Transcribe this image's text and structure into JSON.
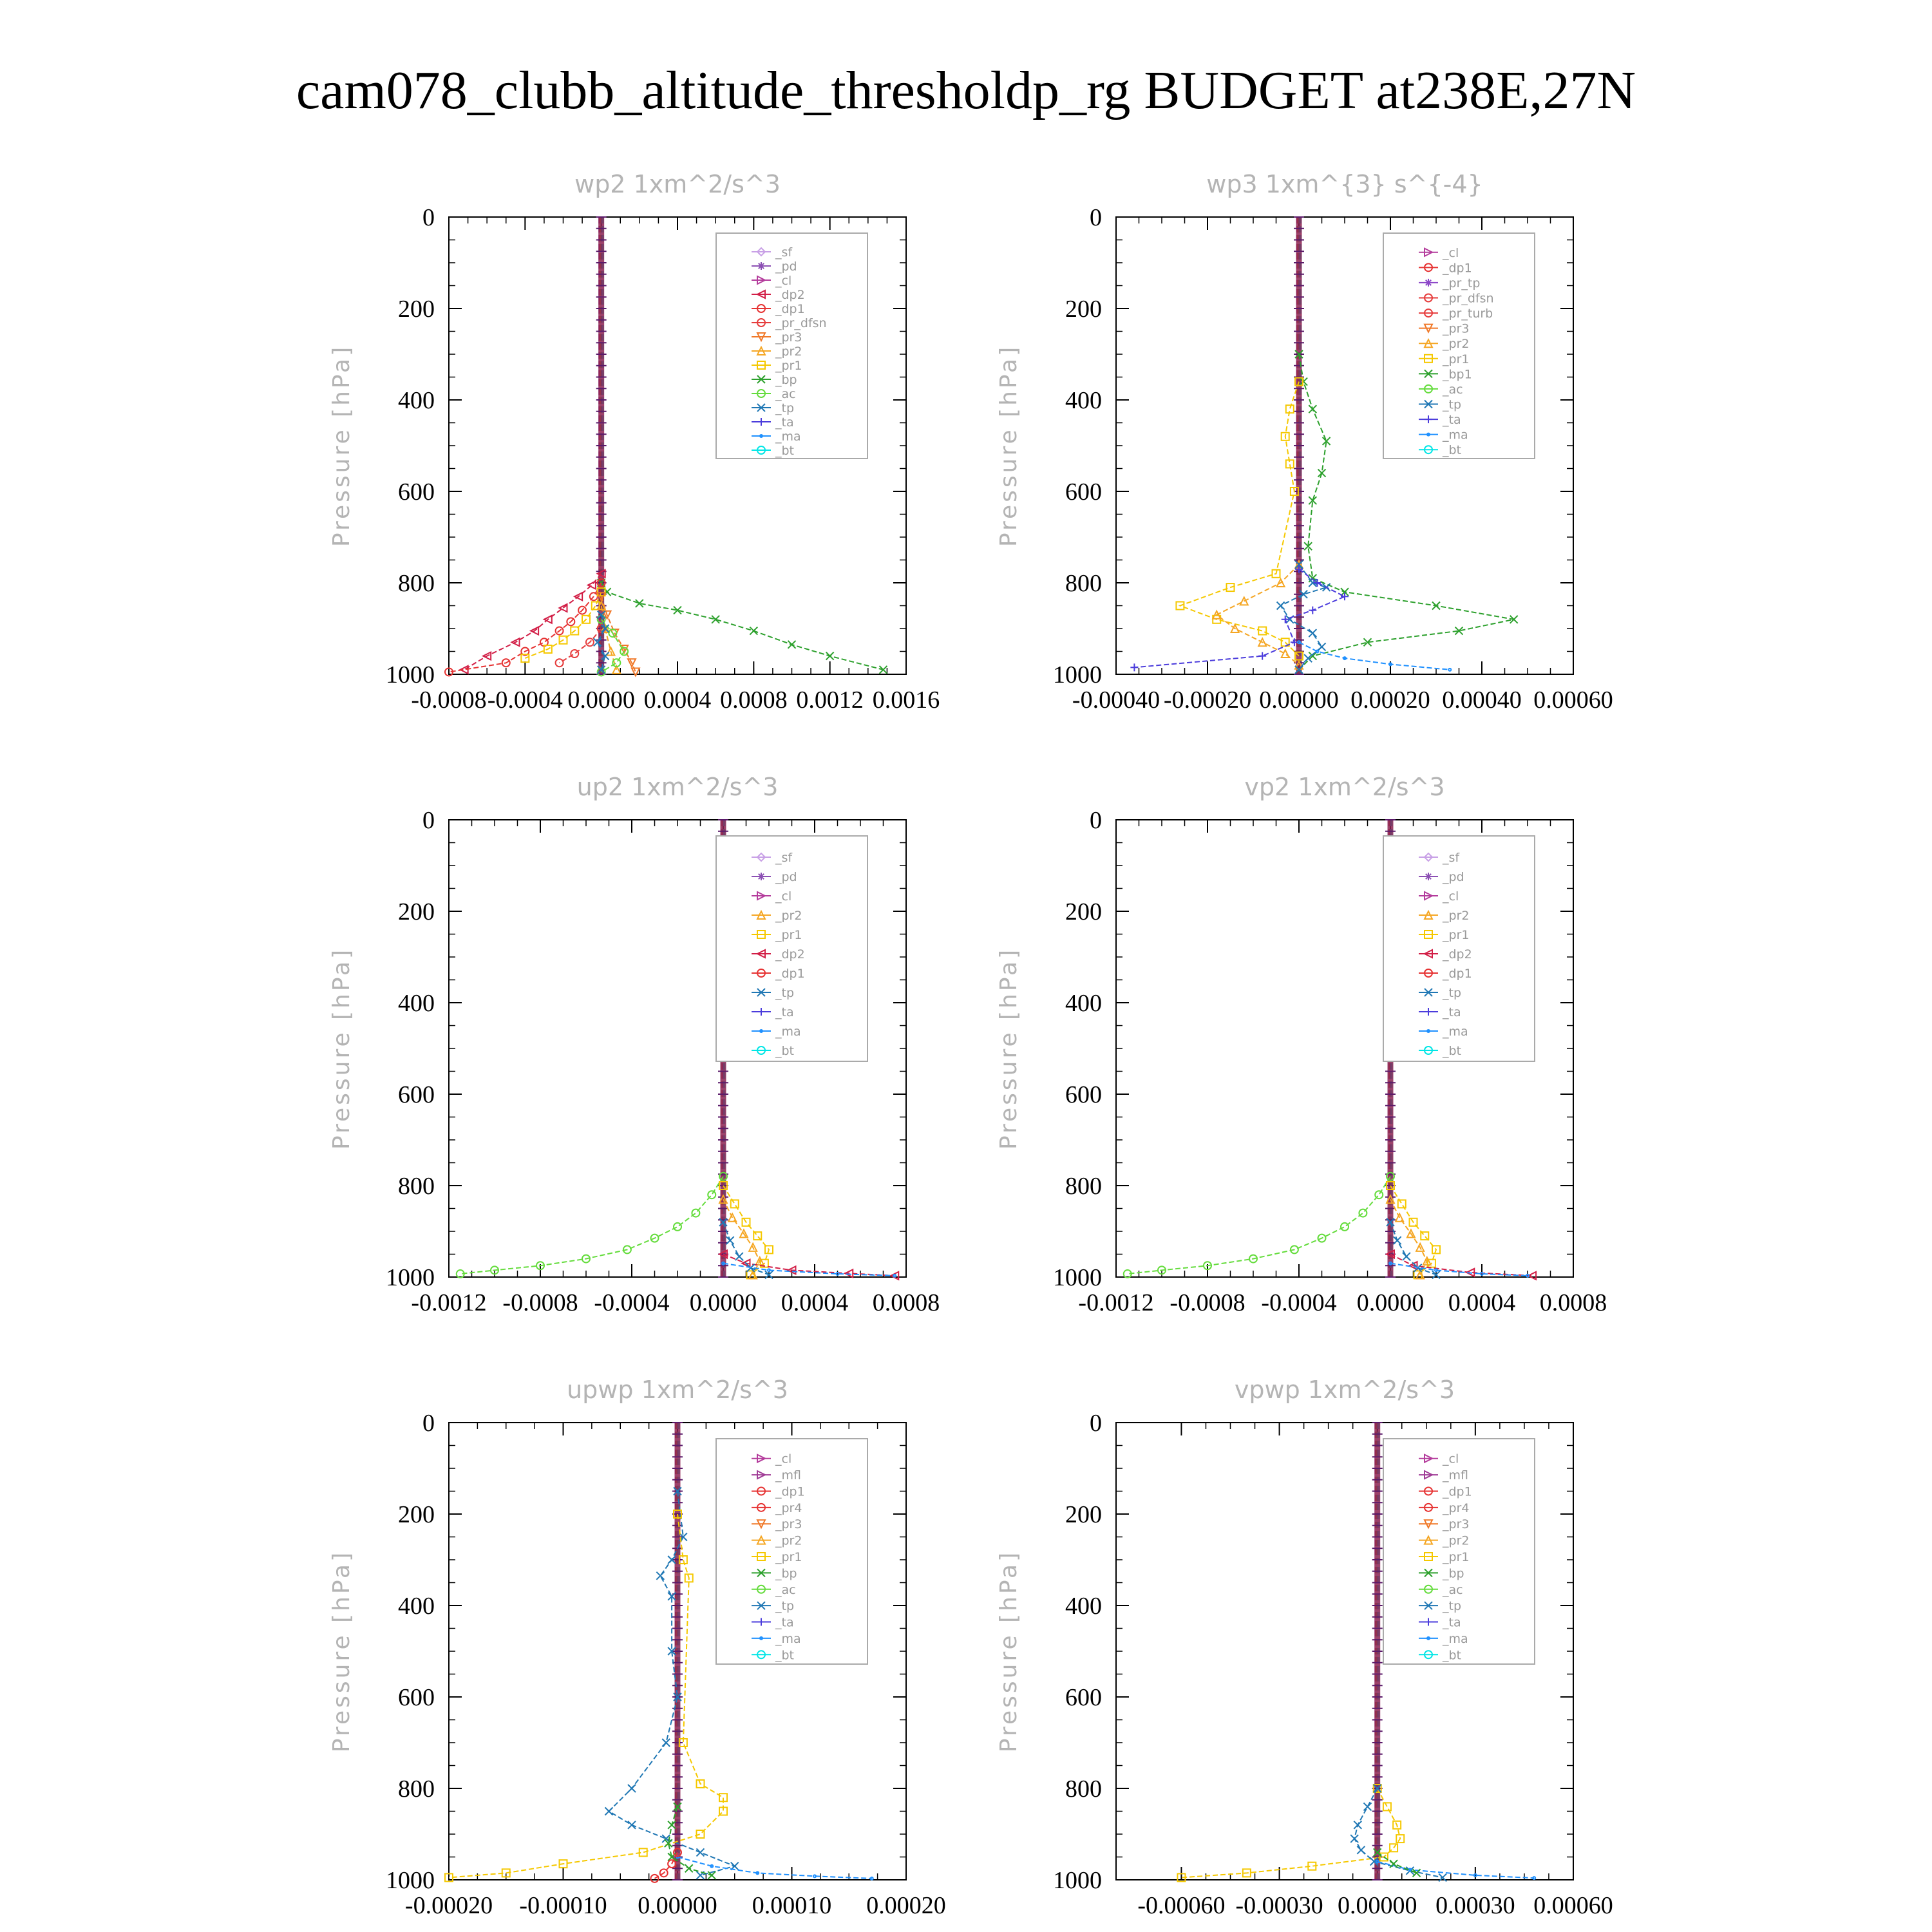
{
  "figure": {
    "title": "cam078_clubb_altitude_thresholdp_rg  BUDGET at238E,27N"
  },
  "colors": {
    "_sf": "#c8a0e6",
    "_pd": "#8c50b4",
    "_cl": "#b43c9c",
    "_mfl": "#a03c96",
    "_dp2": "#d21e46",
    "_dp1": "#e63232",
    "_pr_tp": "#8c46c8",
    "_pr_dfsn": "#e63c3c",
    "_pr_turb": "#e63c3c",
    "_pr4": "#e63232",
    "_pr3": "#f07828",
    "_pr2": "#f5a623",
    "_pr1": "#f5c800",
    "_bp": "#2ca02c",
    "_bp1": "#2ca02c",
    "_ac": "#64dc3c",
    "_tp": "#1f77b4",
    "_ta": "#4b3cdc",
    "_ma": "#1e90ff",
    "_bt": "#00e6e6"
  },
  "chart_data": [
    {
      "type": "line",
      "title": "wp2   1xm^2/s^3",
      "ylabel": "Pressure [hPa]",
      "xlim": [
        -0.0008,
        0.0016
      ],
      "xticks": [
        "-0.0008",
        "-0.0004",
        "0.0000",
        "0.0004",
        "0.0008",
        "0.0012",
        "0.0016"
      ],
      "ylim": [
        0,
        1000
      ],
      "yticks": [
        "0",
        "200",
        "400",
        "600",
        "800",
        "1000"
      ],
      "legend": [
        "_sf",
        "_pd",
        "_cl",
        "_dp2",
        "_dp1",
        "_pr_dfsn",
        "_pr3",
        "_pr2",
        "_pr1",
        "_bp",
        "_ac",
        "_tp",
        "_ta",
        "_ma",
        "_bt"
      ],
      "series": [
        {
          "name": "_bp",
          "x": [
            0,
            3e-05,
            0.0002,
            0.0004,
            0.0006,
            0.0008,
            0.001,
            0.0012,
            0.00148
          ],
          "y": [
            800,
            820,
            845,
            860,
            880,
            905,
            935,
            960,
            990
          ]
        },
        {
          "name": "_dp2",
          "x": [
            0,
            -5e-05,
            -0.00012,
            -0.0002,
            -0.00028,
            -0.00035,
            -0.00045,
            -0.0006,
            -0.00072
          ],
          "y": [
            780,
            805,
            830,
            855,
            880,
            905,
            930,
            960,
            990
          ]
        },
        {
          "name": "_dp1",
          "x": [
            0,
            -4e-05,
            -0.0001,
            -0.00016,
            -0.00022,
            -0.0003,
            -0.0004,
            -0.0005,
            -0.0008
          ],
          "y": [
            800,
            830,
            860,
            885,
            905,
            930,
            950,
            975,
            995
          ]
        },
        {
          "name": "_pr1",
          "x": [
            0,
            -3e-05,
            -8e-05,
            -0.00014,
            -0.0002,
            -0.00028,
            -0.0004
          ],
          "y": [
            820,
            850,
            880,
            905,
            925,
            945,
            965
          ]
        },
        {
          "name": "_pr3",
          "x": [
            0,
            3e-05,
            7e-05,
            0.00012,
            0.00016,
            0.00018
          ],
          "y": [
            830,
            870,
            910,
            945,
            975,
            995
          ]
        },
        {
          "name": "_pr2",
          "x": [
            0,
            2e-05,
            5e-05,
            8e-05
          ],
          "y": [
            850,
            900,
            950,
            990
          ]
        },
        {
          "name": "_pr_dfsn",
          "x": [
            0,
            -6e-05,
            -0.00014,
            -0.00022
          ],
          "y": [
            900,
            930,
            955,
            975
          ]
        },
        {
          "name": "_ac",
          "x": [
            0,
            6e-05,
            0.00012,
            8e-05,
            0
          ],
          "y": [
            880,
            910,
            950,
            975,
            995
          ]
        },
        {
          "name": "_tp",
          "x": [
            0,
            2e-05,
            -2e-05,
            2e-05,
            0
          ],
          "y": [
            870,
            900,
            930,
            960,
            990
          ]
        }
      ]
    },
    {
      "type": "line",
      "title": "wp3   1xm^{3} s^{-4}",
      "ylabel": "Pressure [hPa]",
      "xlim": [
        -0.0004,
        0.0006
      ],
      "xticks": [
        "-0.00040",
        "-0.00020",
        "0.00000",
        "0.00020",
        "0.00040",
        "0.00060"
      ],
      "ylim": [
        0,
        1000
      ],
      "yticks": [
        "0",
        "200",
        "400",
        "600",
        "800",
        "1000"
      ],
      "legend": [
        "_cl",
        "_dp1",
        "_pr_tp",
        "_pr_dfsn",
        "_pr_turb",
        "_pr3",
        "_pr2",
        "_pr1",
        "_bp1",
        "_ac",
        "_tp",
        "_ta",
        "_ma",
        "_bt"
      ],
      "series": [
        {
          "name": "_bp1",
          "x": [
            0,
            1e-05,
            3e-05,
            6e-05,
            5e-05,
            3e-05,
            2e-05,
            3e-05,
            0.0001,
            0.0003,
            0.00047,
            0.00035,
            0.00015,
            3e-05,
            0
          ],
          "y": [
            300,
            360,
            420,
            490,
            560,
            620,
            720,
            790,
            820,
            850,
            880,
            905,
            930,
            960,
            990
          ]
        },
        {
          "name": "_pr1",
          "x": [
            0,
            -2e-05,
            -3e-05,
            -2e-05,
            -1e-05,
            -5e-05,
            -0.00015,
            -0.00026,
            -0.00018,
            -8e-05,
            -3e-05,
            0
          ],
          "y": [
            360,
            420,
            480,
            540,
            600,
            780,
            810,
            850,
            880,
            905,
            930,
            960
          ]
        },
        {
          "name": "_pr2",
          "x": [
            0,
            -4e-05,
            -0.00012,
            -0.00018,
            -0.00014,
            -8e-05,
            -3e-05,
            0
          ],
          "y": [
            760,
            800,
            840,
            870,
            900,
            930,
            955,
            980
          ]
        },
        {
          "name": "_tp",
          "x": [
            0,
            3e-05,
            6e-05,
            1e-05,
            -4e-05,
            -2e-05,
            3e-05,
            5e-05,
            2e-05,
            0
          ],
          "y": [
            760,
            800,
            810,
            825,
            850,
            880,
            910,
            940,
            965,
            990
          ]
        },
        {
          "name": "_ta",
          "x": [
            0,
            4e-05,
            0.0001,
            3e-05,
            -3e-05,
            -1e-05,
            -8e-05,
            -0.00036
          ],
          "y": [
            770,
            800,
            830,
            860,
            880,
            930,
            960,
            985
          ]
        },
        {
          "name": "_ma",
          "x": [
            0,
            4e-05,
            0.0001,
            0.0002,
            0.00033
          ],
          "y": [
            930,
            950,
            965,
            978,
            990
          ]
        }
      ]
    },
    {
      "type": "line",
      "title": "up2   1xm^2/s^3",
      "ylabel": "Pressure [hPa]",
      "xlim": [
        -0.0012,
        0.0008
      ],
      "xticks": [
        "-0.0012",
        "-0.0008",
        "-0.0004",
        "0.0000",
        "0.0004",
        "0.0008"
      ],
      "ylim": [
        0,
        1000
      ],
      "yticks": [
        "0",
        "200",
        "400",
        "600",
        "800",
        "1000"
      ],
      "legend": [
        "_sf",
        "_pd",
        "_cl",
        "_pr2",
        "_pr1",
        "_dp2",
        "_dp1",
        "_tp",
        "_ta",
        "_ma",
        "_bt"
      ],
      "series": [
        {
          "name": "_ac",
          "x": [
            0,
            -5e-05,
            -0.00012,
            -0.0002,
            -0.0003,
            -0.00042,
            -0.0006,
            -0.0008,
            -0.001,
            -0.00115
          ],
          "y": [
            780,
            820,
            860,
            890,
            915,
            940,
            960,
            975,
            985,
            993
          ]
        },
        {
          "name": "_pr1",
          "x": [
            0,
            5e-05,
            0.0001,
            0.00015,
            0.0002,
            0.00018,
            0.00012
          ],
          "y": [
            800,
            840,
            880,
            910,
            940,
            970,
            995
          ]
        },
        {
          "name": "_pr2",
          "x": [
            0,
            4e-05,
            9e-05,
            0.00013,
            0.00016,
            0.00013
          ],
          "y": [
            830,
            870,
            905,
            935,
            965,
            995
          ]
        },
        {
          "name": "_dp2",
          "x": [
            0,
            0.0001,
            0.0003,
            0.00055,
            0.00075
          ],
          "y": [
            950,
            970,
            985,
            992,
            997
          ]
        },
        {
          "name": "_tp",
          "x": [
            0,
            3e-05,
            7e-05,
            0.00012,
            0.0002
          ],
          "y": [
            880,
            920,
            955,
            980,
            995
          ]
        },
        {
          "name": "_ma",
          "x": [
            0,
            0.0002,
            0.0005,
            0.00075
          ],
          "y": [
            970,
            985,
            993,
            997
          ]
        }
      ]
    },
    {
      "type": "line",
      "title": "vp2   1xm^2/s^3",
      "ylabel": "Pressure [hPa]",
      "xlim": [
        -0.0012,
        0.0008
      ],
      "xticks": [
        "-0.0012",
        "-0.0008",
        "-0.0004",
        "0.0000",
        "0.0004",
        "0.0008"
      ],
      "ylim": [
        0,
        1000
      ],
      "yticks": [
        "0",
        "200",
        "400",
        "600",
        "800",
        "1000"
      ],
      "legend": [
        "_sf",
        "_pd",
        "_cl",
        "_pr2",
        "_pr1",
        "_dp2",
        "_dp1",
        "_tp",
        "_ta",
        "_ma",
        "_bt"
      ],
      "series": [
        {
          "name": "_ac",
          "x": [
            0,
            -5e-05,
            -0.00012,
            -0.0002,
            -0.0003,
            -0.00042,
            -0.0006,
            -0.0008,
            -0.001,
            -0.00115
          ],
          "y": [
            780,
            820,
            860,
            890,
            915,
            940,
            960,
            975,
            985,
            993
          ]
        },
        {
          "name": "_pr1",
          "x": [
            0,
            5e-05,
            0.0001,
            0.00015,
            0.0002,
            0.00018,
            0.00012
          ],
          "y": [
            800,
            840,
            880,
            910,
            940,
            970,
            995
          ]
        },
        {
          "name": "_pr2",
          "x": [
            0,
            4e-05,
            9e-05,
            0.00013,
            0.00016,
            0.00013
          ],
          "y": [
            830,
            870,
            905,
            935,
            965,
            995
          ]
        },
        {
          "name": "_dp2",
          "x": [
            0,
            0.0001,
            0.00035,
            0.00062
          ],
          "y": [
            950,
            975,
            990,
            997
          ]
        },
        {
          "name": "_tp",
          "x": [
            0,
            3e-05,
            7e-05,
            0.00012,
            0.0002
          ],
          "y": [
            880,
            920,
            955,
            980,
            995
          ]
        },
        {
          "name": "_ma",
          "x": [
            0,
            0.0002,
            0.0004,
            0.0006
          ],
          "y": [
            970,
            985,
            993,
            997
          ]
        }
      ]
    },
    {
      "type": "line",
      "title": "upwp   1xm^2/s^3",
      "ylabel": "Pressure [hPa]",
      "xlim": [
        -0.0002,
        0.0002
      ],
      "xticks": [
        "-0.00020",
        "-0.00010",
        "0.00000",
        "0.00010",
        "0.00020"
      ],
      "ylim": [
        0,
        1000
      ],
      "yticks": [
        "0",
        "200",
        "400",
        "600",
        "800",
        "1000"
      ],
      "legend": [
        "_cl",
        "_mfl",
        "_dp1",
        "_pr4",
        "_pr3",
        "_pr2",
        "_pr1",
        "_bp",
        "_ac",
        "_tp",
        "_ta",
        "_ma",
        "_bt"
      ],
      "series": [
        {
          "name": "_tp",
          "x": [
            0,
            5e-06,
            -5e-06,
            -1.5e-05,
            -5e-06,
            -5e-06,
            0,
            -1e-05,
            -4e-05,
            -6e-05,
            -4e-05,
            -1e-05,
            2e-05,
            5e-05,
            2e-05
          ],
          "y": [
            150,
            250,
            300,
            335,
            380,
            500,
            600,
            700,
            800,
            850,
            880,
            910,
            940,
            970,
            990
          ]
        },
        {
          "name": "_pr1",
          "x": [
            0,
            5e-06,
            1e-05,
            5e-06,
            2e-05,
            4e-05,
            4e-05,
            2e-05,
            -3e-05,
            -0.0001,
            -0.00015,
            -0.0002
          ],
          "y": [
            200,
            300,
            340,
            700,
            790,
            820,
            850,
            900,
            940,
            965,
            985,
            995
          ]
        },
        {
          "name": "_bp",
          "x": [
            0,
            -5e-06,
            -8e-06,
            -5e-06,
            1e-05,
            3e-05
          ],
          "y": [
            840,
            880,
            920,
            950,
            975,
            990
          ]
        },
        {
          "name": "_ma",
          "x": [
            0,
            3e-05,
            7e-05,
            0.00012,
            0.00017
          ],
          "y": [
            950,
            970,
            985,
            992,
            997
          ]
        },
        {
          "name": "_dp1",
          "x": [
            0,
            -5e-06,
            -1.2e-05,
            -2e-05
          ],
          "y": [
            940,
            965,
            985,
            997
          ]
        }
      ]
    },
    {
      "type": "line",
      "title": "vpwp   1xm^2/s^3",
      "ylabel": "Pressure [hPa]",
      "xlim": [
        -0.0008,
        0.0006
      ],
      "xticks": [
        "-0.00060",
        "-0.00030",
        "0.00000",
        "0.00030",
        "0.00060"
      ],
      "ylim": [
        0,
        1000
      ],
      "yticks": [
        "0",
        "200",
        "400",
        "600",
        "800",
        "1000"
      ],
      "legend": [
        "_cl",
        "_mfl",
        "_dp1",
        "_pr4",
        "_pr3",
        "_pr2",
        "_pr1",
        "_bp",
        "_ac",
        "_tp",
        "_ta",
        "_ma",
        "_bt"
      ],
      "series": [
        {
          "name": "_pr1",
          "x": [
            0,
            3e-05,
            6e-05,
            7e-05,
            5e-05,
            2e-05,
            -0.0002,
            -0.0004,
            -0.0006
          ],
          "y": [
            800,
            840,
            880,
            910,
            930,
            950,
            970,
            985,
            995
          ]
        },
        {
          "name": "_tp",
          "x": [
            0,
            -3e-05,
            -6e-05,
            -7e-05,
            -5e-05,
            -1e-05,
            0.0001,
            0.0002
          ],
          "y": [
            800,
            840,
            880,
            910,
            935,
            960,
            980,
            995
          ]
        },
        {
          "name": "_ma",
          "x": [
            0,
            0.0001,
            0.0003,
            0.00048
          ],
          "y": [
            960,
            978,
            990,
            996
          ]
        },
        {
          "name": "_bp",
          "x": [
            0,
            5e-05,
            0.00012
          ],
          "y": [
            940,
            965,
            985
          ]
        }
      ]
    }
  ]
}
